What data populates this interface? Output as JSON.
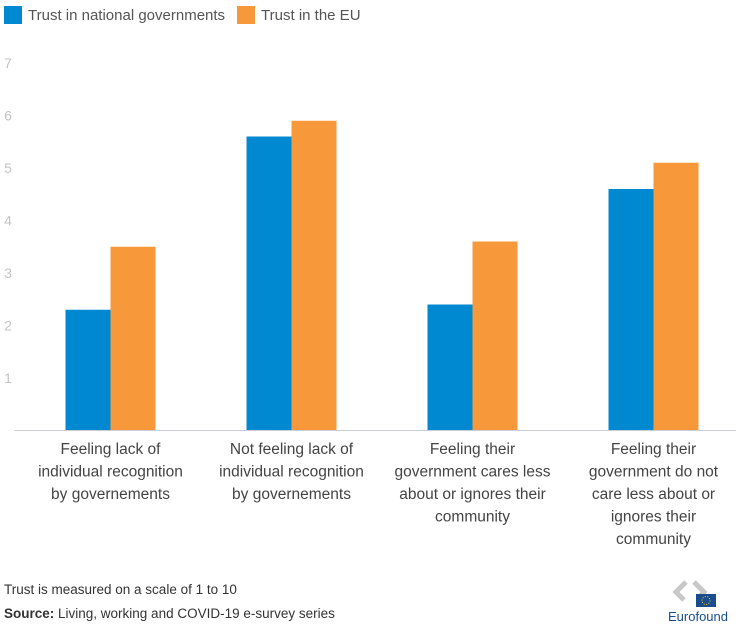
{
  "chart_data": {
    "type": "bar",
    "categories": [
      [
        "Feeling lack of",
        "individual recognition",
        "by governements"
      ],
      [
        "Not feeling lack of",
        "individual recognition",
        "by governements"
      ],
      [
        "Feeling their",
        "government cares less",
        "about or ignores their",
        "community"
      ],
      [
        "Feeling their",
        "government do not",
        "care less about or",
        "ignores their",
        "community"
      ]
    ],
    "series": [
      {
        "name": "Trust in national governments",
        "color": "#0088d1",
        "values": [
          2.3,
          5.6,
          2.4,
          4.6
        ]
      },
      {
        "name": "Trust in the EU",
        "color": "#f7983a",
        "values": [
          3.5,
          5.9,
          3.6,
          5.1
        ]
      }
    ],
    "yticks": [
      "1",
      "2",
      "3",
      "4",
      "5",
      "6",
      "7"
    ],
    "ylim": [
      0,
      7
    ],
    "grid": false,
    "legend": "top-left"
  },
  "footer": {
    "note": "Trust is measured on a scale of 1 to 10",
    "source_label": "Source:",
    "source_text": " Living, working and COVID-19 e-survey series",
    "logo_text": "Eurofound"
  }
}
